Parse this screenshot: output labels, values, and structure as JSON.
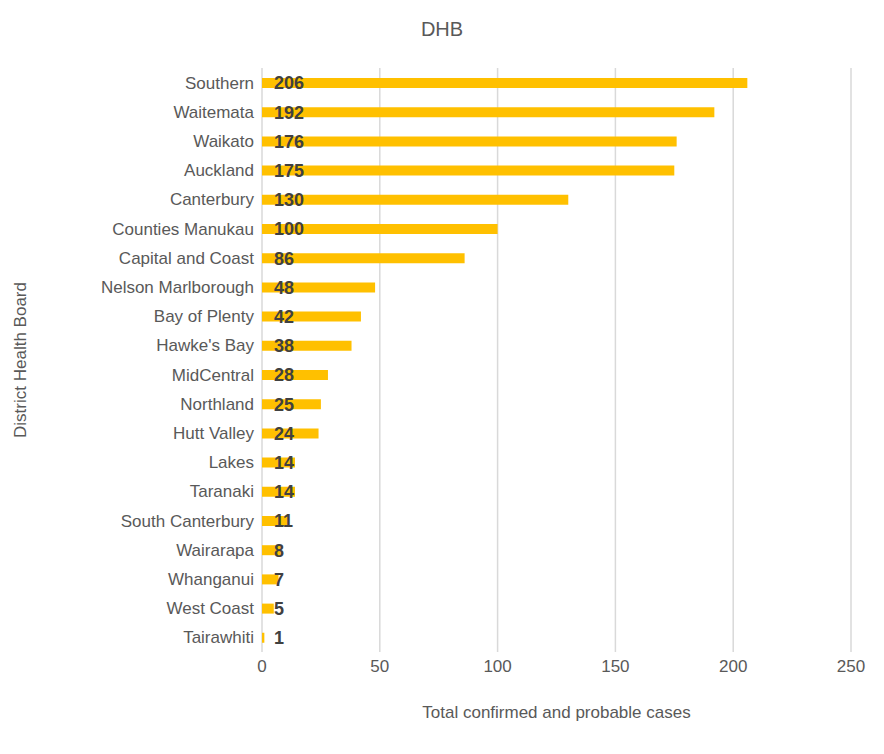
{
  "chart_data": {
    "type": "bar",
    "title": "DHB",
    "x_label": "Total confirmed and probable cases",
    "y_label": "District Health Board",
    "orientation": "horizontal",
    "categories": [
      "Southern",
      "Waitemata",
      "Waikato",
      "Auckland",
      "Canterbury",
      "Counties Manukau",
      "Capital and Coast",
      "Nelson Marlborough",
      "Bay of Plenty",
      "Hawke's Bay",
      "MidCentral",
      "Northland",
      "Hutt Valley",
      "Lakes",
      "Taranaki",
      "South Canterbury",
      "Wairarapa",
      "Whanganui",
      "West Coast",
      "Tairawhiti"
    ],
    "values": [
      206,
      192,
      176,
      175,
      130,
      100,
      86,
      48,
      42,
      38,
      28,
      25,
      24,
      14,
      14,
      11,
      8,
      7,
      5,
      1
    ],
    "color": "#FFC000",
    "xlim": [
      0,
      250
    ],
    "xticks": [
      0,
      50,
      100,
      150,
      200,
      250
    ],
    "grid": true,
    "data_labels": true
  }
}
